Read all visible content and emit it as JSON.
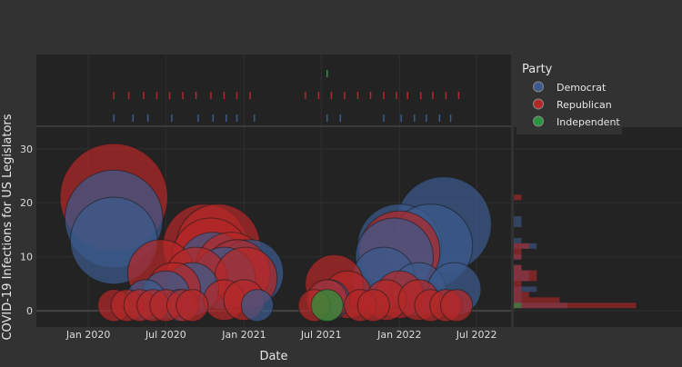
{
  "chart_data": {
    "type": "scatter",
    "subtype": "bubble-with-marginals",
    "xlabel": "Date",
    "ylabel": "COVID-19 Infections for US Legislators",
    "x_ticks": [
      "Jan 2020",
      "Jul 2020",
      "Jan 2021",
      "Jul 2021",
      "Jan 2022",
      "Jul 2022"
    ],
    "y_ticks": [
      "0",
      "10",
      "20",
      "30"
    ],
    "xlim": [
      "2019-09-01",
      "2022-09-20"
    ],
    "ylim": [
      -3,
      34
    ],
    "legend": {
      "title": "Party",
      "placement": "top-right",
      "entries": [
        {
          "name": "Democrat",
          "color": "#3c5a8c"
        },
        {
          "name": "Republican",
          "color": "#b42828"
        },
        {
          "name": "Independent",
          "color": "#28963c"
        }
      ]
    },
    "colors": {
      "Democrat": "#3c5a8c",
      "Republican": "#b42828",
      "Independent": "#28963c",
      "background": "#323232",
      "plot_bg": "#232323"
    },
    "series": [
      {
        "name": "Democrat",
        "points": [
          {
            "x": "2020-03-01",
            "y": 13
          },
          {
            "x": "2020-03-01",
            "y": 17
          },
          {
            "x": "2020-05-15",
            "y": 2
          },
          {
            "x": "2020-07-01",
            "y": 3
          },
          {
            "x": "2020-08-01",
            "y": 1
          },
          {
            "x": "2020-09-01",
            "y": 4
          },
          {
            "x": "2020-10-20",
            "y": 8
          },
          {
            "x": "2020-11-15",
            "y": 6
          },
          {
            "x": "2020-12-20",
            "y": 7
          },
          {
            "x": "2021-01-15",
            "y": 7
          },
          {
            "x": "2021-02-01",
            "y": 1
          },
          {
            "x": "2021-07-20",
            "y": 2
          },
          {
            "x": "2021-11-25",
            "y": 6
          },
          {
            "x": "2021-12-20",
            "y": 10
          },
          {
            "x": "2022-01-01",
            "y": 12
          },
          {
            "x": "2022-02-15",
            "y": 4
          },
          {
            "x": "2022-03-15",
            "y": 12
          },
          {
            "x": "2022-04-15",
            "y": 16
          },
          {
            "x": "2022-05-10",
            "y": 4
          }
        ]
      },
      {
        "name": "Republican",
        "points": [
          {
            "x": "2020-03-01",
            "y": 21
          },
          {
            "x": "2020-03-01",
            "y": 1
          },
          {
            "x": "2020-04-01",
            "y": 1
          },
          {
            "x": "2020-05-01",
            "y": 1
          },
          {
            "x": "2020-06-01",
            "y": 1
          },
          {
            "x": "2020-07-01",
            "y": 1
          },
          {
            "x": "2020-06-20",
            "y": 7
          },
          {
            "x": "2020-07-20",
            "y": 4
          },
          {
            "x": "2020-08-10",
            "y": 1
          },
          {
            "x": "2020-09-01",
            "y": 1
          },
          {
            "x": "2020-09-10",
            "y": 6
          },
          {
            "x": "2020-10-15",
            "y": 10
          },
          {
            "x": "2020-10-01",
            "y": 12
          },
          {
            "x": "2020-11-01",
            "y": 12
          },
          {
            "x": "2020-11-15",
            "y": 2
          },
          {
            "x": "2020-12-01",
            "y": 8
          },
          {
            "x": "2020-12-15",
            "y": 7
          },
          {
            "x": "2021-01-05",
            "y": 6
          },
          {
            "x": "2021-01-01",
            "y": 2
          },
          {
            "x": "2021-06-15",
            "y": 1
          },
          {
            "x": "2021-07-15",
            "y": 2
          },
          {
            "x": "2021-08-01",
            "y": 5
          },
          {
            "x": "2021-09-01",
            "y": 3
          },
          {
            "x": "2021-10-01",
            "y": 1
          },
          {
            "x": "2021-11-01",
            "y": 1
          },
          {
            "x": "2021-12-01",
            "y": 2
          },
          {
            "x": "2022-01-01",
            "y": 3
          },
          {
            "x": "2022-01-01",
            "y": 11
          },
          {
            "x": "2022-02-15",
            "y": 2
          },
          {
            "x": "2022-03-15",
            "y": 1
          },
          {
            "x": "2022-04-20",
            "y": 1
          },
          {
            "x": "2022-05-15",
            "y": 1
          }
        ]
      },
      {
        "name": "Independent",
        "points": [
          {
            "x": "2021-07-15",
            "y": 1
          }
        ]
      }
    ],
    "marginal_y_histogram": {
      "bin_width": 1,
      "series": [
        {
          "name": "Democrat",
          "bins": [
            {
              "y": 1,
              "count": 7
            },
            {
              "y": 2,
              "count": 1
            },
            {
              "y": 3,
              "count": 1
            },
            {
              "y": 4,
              "count": 3
            },
            {
              "y": 6,
              "count": 2
            },
            {
              "y": 7,
              "count": 2
            },
            {
              "y": 8,
              "count": 1
            },
            {
              "y": 10,
              "count": 1
            },
            {
              "y": 12,
              "count": 3
            },
            {
              "y": 13,
              "count": 1
            },
            {
              "y": 16,
              "count": 1
            },
            {
              "y": 17,
              "count": 1
            }
          ]
        },
        {
          "name": "Republican",
          "bins": [
            {
              "y": 1,
              "count": 16
            },
            {
              "y": 2,
              "count": 6
            },
            {
              "y": 3,
              "count": 2
            },
            {
              "y": 4,
              "count": 1
            },
            {
              "y": 5,
              "count": 1
            },
            {
              "y": 6,
              "count": 3
            },
            {
              "y": 7,
              "count": 3
            },
            {
              "y": 8,
              "count": 1
            },
            {
              "y": 10,
              "count": 1
            },
            {
              "y": 11,
              "count": 1
            },
            {
              "y": 12,
              "count": 2
            },
            {
              "y": 21,
              "count": 1
            }
          ]
        },
        {
          "name": "Independent",
          "bins": [
            {
              "y": 1,
              "count": 1
            }
          ]
        }
      ]
    },
    "marginal_x_rugs": {
      "Democrat": [
        "2020-03-01",
        "2020-04-15",
        "2020-05-20",
        "2020-07-15",
        "2020-09-15",
        "2020-10-20",
        "2020-11-20",
        "2020-12-15",
        "2021-01-25",
        "2021-07-15",
        "2021-08-15",
        "2021-11-25",
        "2022-01-05",
        "2022-02-05",
        "2022-03-05",
        "2022-04-05",
        "2022-05-01"
      ],
      "Republican": [
        "2020-03-01",
        "2020-04-05",
        "2020-05-10",
        "2020-06-10",
        "2020-07-10",
        "2020-08-10",
        "2020-09-10",
        "2020-10-15",
        "2020-11-15",
        "2020-12-15",
        "2021-01-15",
        "2021-05-25",
        "2021-06-25",
        "2021-07-25",
        "2021-08-25",
        "2021-09-25",
        "2021-10-25",
        "2021-11-25",
        "2021-12-25",
        "2022-01-20",
        "2022-02-20",
        "2022-03-20",
        "2022-04-20",
        "2022-05-20"
      ],
      "Independent": [
        "2021-07-15"
      ]
    }
  }
}
